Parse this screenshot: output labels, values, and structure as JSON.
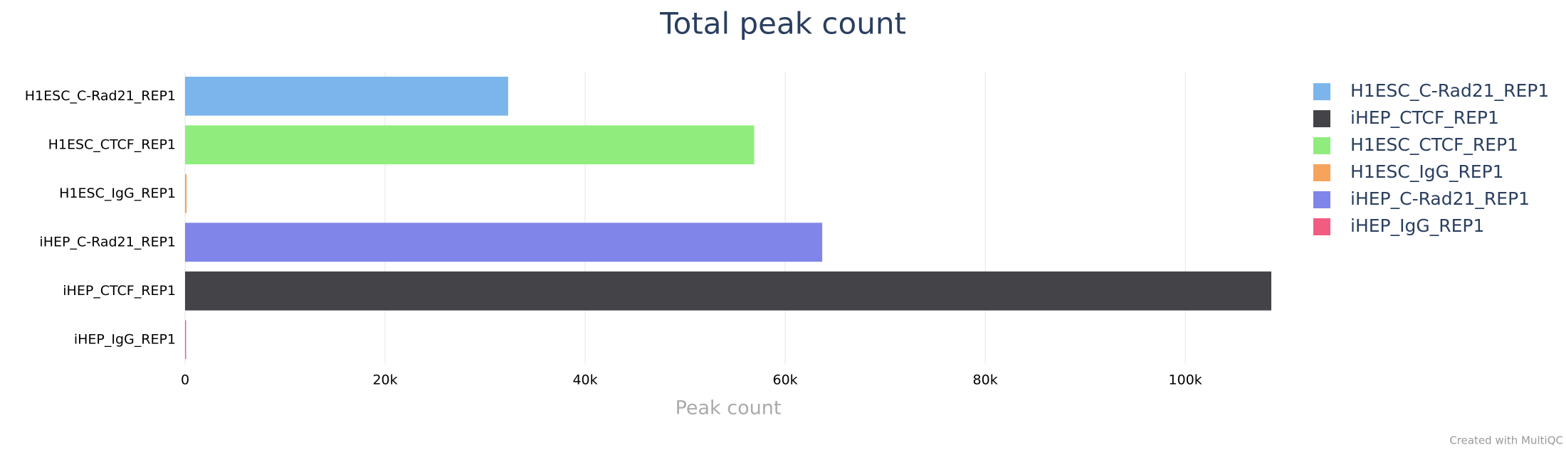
{
  "chart_data": {
    "type": "bar",
    "orientation": "horizontal",
    "title": "Total peak count",
    "x_label": "Peak count",
    "credit": "Created with MultiQC",
    "categories": [
      "H1ESC_C-Rad21_REP1",
      "H1ESC_CTCF_REP1",
      "H1ESC_IgG_REP1",
      "iHEP_C-Rad21_REP1",
      "iHEP_CTCF_REP1",
      "iHEP_IgG_REP1"
    ],
    "values": [
      32300,
      56900,
      150,
      63700,
      108600,
      100
    ],
    "colors": [
      "#7cb5ec",
      "#90ed7d",
      "#f7a35c",
      "#8085e9",
      "#434348",
      "#f15c80"
    ],
    "legend": [
      {
        "name": "H1ESC_C-Rad21_REP1",
        "color": "#7cb5ec"
      },
      {
        "name": "iHEP_CTCF_REP1",
        "color": "#434348"
      },
      {
        "name": "H1ESC_CTCF_REP1",
        "color": "#90ed7d"
      },
      {
        "name": "H1ESC_IgG_REP1",
        "color": "#f7a35c"
      },
      {
        "name": "iHEP_C-Rad21_REP1",
        "color": "#8085e9"
      },
      {
        "name": "iHEP_IgG_REP1",
        "color": "#f15c80"
      }
    ],
    "xlim": [
      0,
      108600
    ],
    "xticks": [
      0,
      {
        "value": 20000,
        "label": "20k"
      },
      {
        "value": 40000,
        "label": "40k"
      },
      {
        "value": 60000,
        "label": "60k"
      },
      {
        "value": 80000,
        "label": "80k"
      },
      {
        "value": 100000,
        "label": "100k"
      }
    ],
    "grid": true
  }
}
